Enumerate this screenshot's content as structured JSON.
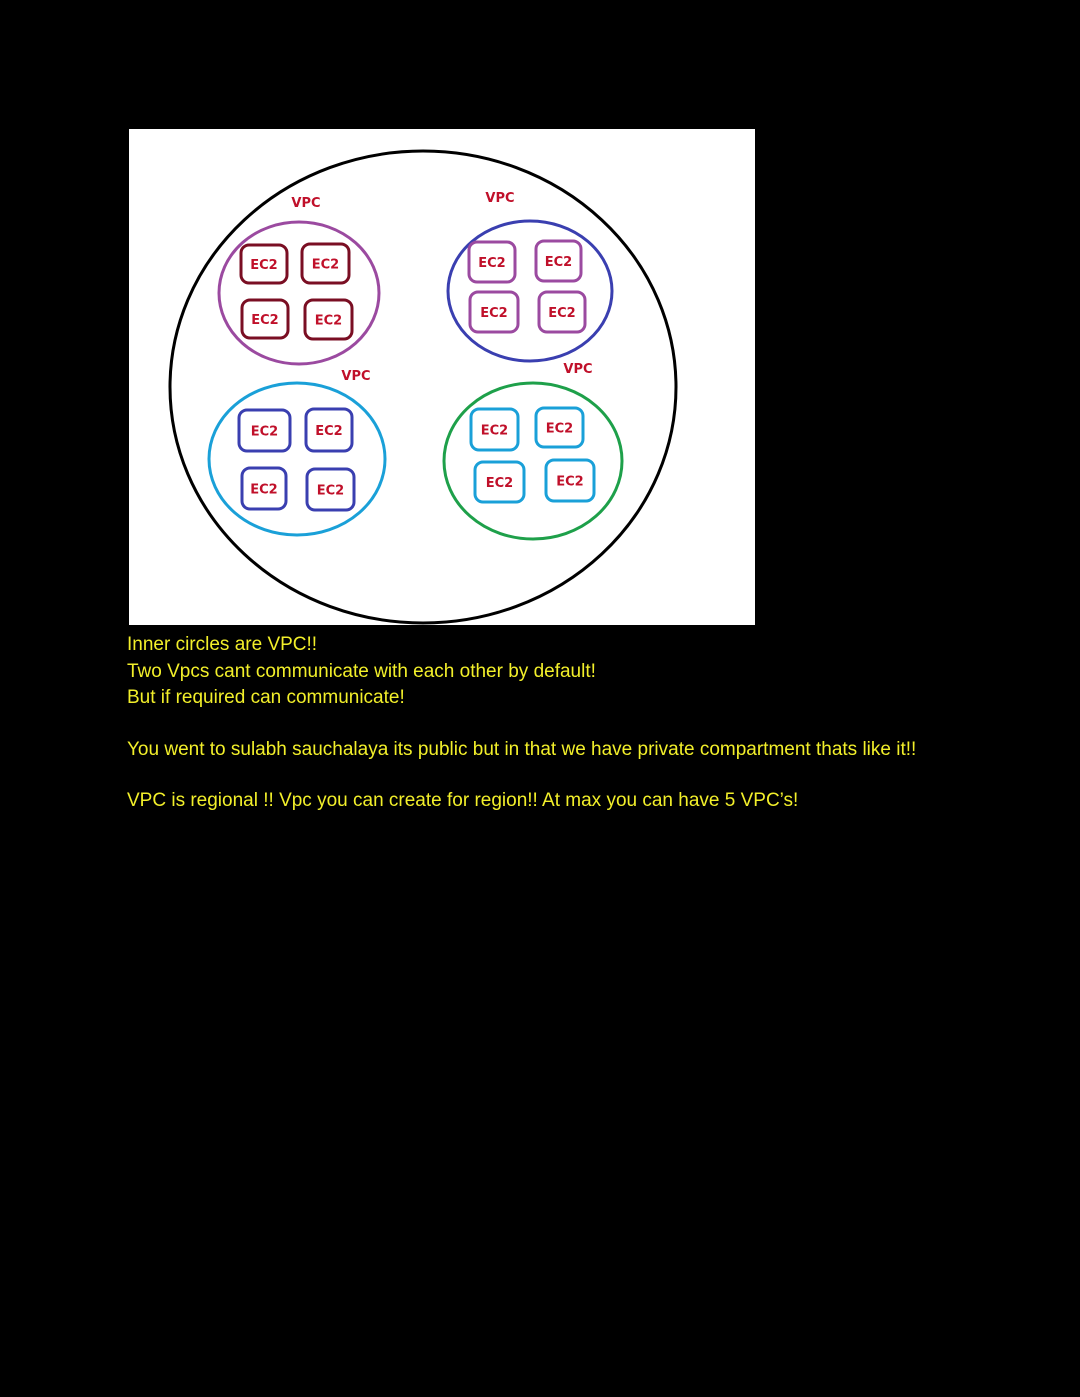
{
  "diagram": {
    "colors": {
      "background": "#ffffff",
      "region_circle": "#000000",
      "label_text": "#c0102a"
    },
    "vpcs": [
      {
        "id": "top-left",
        "label": "VPC",
        "circle_color": "#9b4aa0",
        "box_color": "#7a0e23",
        "instances": [
          "EC2",
          "EC2",
          "EC2",
          "EC2"
        ]
      },
      {
        "id": "top-right",
        "label": "VPC",
        "circle_color": "#3a3fb0",
        "box_color": "#9b4aa0",
        "instances": [
          "EC2",
          "EC2",
          "EC2",
          "EC2"
        ]
      },
      {
        "id": "bottom-left",
        "label": "VPC",
        "circle_color": "#1aa0d8",
        "box_color": "#3a3fb0",
        "instances": [
          "EC2",
          "EC2",
          "EC2",
          "EC2"
        ]
      },
      {
        "id": "bottom-right",
        "label": "VPC",
        "circle_color": "#1ea04a",
        "box_color": "#1aa0d8",
        "instances": [
          "EC2",
          "EC2",
          "EC2",
          "EC2"
        ]
      }
    ]
  },
  "notes": {
    "color": "#f2ef2a",
    "line1": "Inner circles are VPC!!",
    "line2": "Two Vpcs cant communicate with each other by default!",
    "line3": "But if required can communicate!",
    "line4": "You went to sulabh sauchalaya its public but in that we have private compartment thats like it!!",
    "line5": "VPC is regional !! Vpc you can create for region!! At max you can have 5 VPC’s!"
  }
}
